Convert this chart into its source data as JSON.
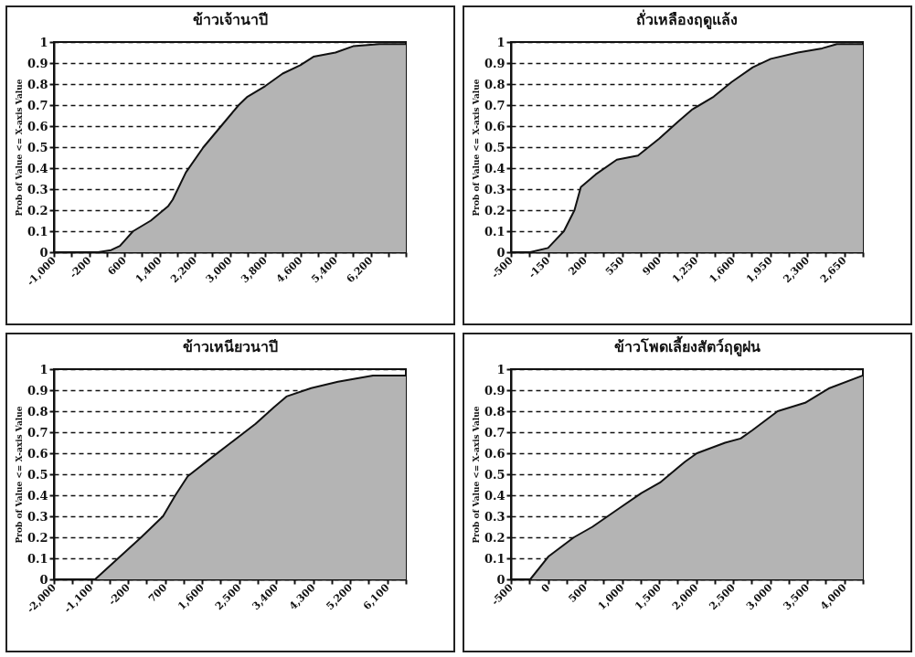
{
  "chart_data": [
    {
      "type": "area",
      "title": "ข้าวเจ้านาปี",
      "ylabel": "Prob of Value <= X-axis Value",
      "grid": "y",
      "xlim": [
        -1000,
        7000
      ],
      "ylim": [
        0,
        1
      ],
      "yticks": [
        0,
        0.1,
        0.2,
        0.3,
        0.4,
        0.5,
        0.6,
        0.7,
        0.8,
        0.9,
        1
      ],
      "xticks": [
        {
          "value": -1000,
          "label": "-1,000"
        },
        {
          "value": -600,
          "label": null
        },
        {
          "value": -200,
          "label": "-200"
        },
        {
          "value": 200,
          "label": null
        },
        {
          "value": 600,
          "label": "600"
        },
        {
          "value": 1000,
          "label": null
        },
        {
          "value": 1400,
          "label": "1,400"
        },
        {
          "value": 1800,
          "label": null
        },
        {
          "value": 2200,
          "label": "2,200"
        },
        {
          "value": 2600,
          "label": null
        },
        {
          "value": 3000,
          "label": "3,000"
        },
        {
          "value": 3400,
          "label": null
        },
        {
          "value": 3800,
          "label": "3,800"
        },
        {
          "value": 4200,
          "label": null
        },
        {
          "value": 4600,
          "label": "4,600"
        },
        {
          "value": 5000,
          "label": null
        },
        {
          "value": 5400,
          "label": "5,400"
        },
        {
          "value": 5800,
          "label": null
        },
        {
          "value": 6200,
          "label": "6,200"
        },
        {
          "value": 6600,
          "label": null
        },
        {
          "value": 7000,
          "label": null
        }
      ],
      "series": [
        {
          "color": "#b4b4b4",
          "x": [
            -1000,
            0,
            300,
            500,
            800,
            1200,
            1600,
            1700,
            2000,
            2400,
            2800,
            3200,
            3400,
            3800,
            4200,
            4600,
            4900,
            5400,
            5800,
            6400,
            7000
          ],
          "values": [
            0,
            0,
            0.01,
            0.03,
            0.1,
            0.15,
            0.22,
            0.25,
            0.38,
            0.5,
            0.6,
            0.7,
            0.74,
            0.79,
            0.85,
            0.89,
            0.93,
            0.95,
            0.98,
            0.99,
            0.99
          ]
        }
      ]
    },
    {
      "type": "area",
      "title": "ถั่วเหลืองฤดูแล้ง",
      "ylabel": "Prob of Value <= X-axis Value",
      "grid": "y",
      "xlim": [
        -500,
        2825
      ],
      "ylim": [
        0,
        1
      ],
      "yticks": [
        0,
        0.1,
        0.2,
        0.3,
        0.4,
        0.5,
        0.6,
        0.7,
        0.8,
        0.9,
        1
      ],
      "xticks": [
        {
          "value": -500,
          "label": "-500"
        },
        {
          "value": -325,
          "label": null
        },
        {
          "value": -150,
          "label": "-150"
        },
        {
          "value": 25,
          "label": null
        },
        {
          "value": 200,
          "label": "200"
        },
        {
          "value": 375,
          "label": null
        },
        {
          "value": 550,
          "label": "550"
        },
        {
          "value": 725,
          "label": null
        },
        {
          "value": 900,
          "label": "900"
        },
        {
          "value": 1075,
          "label": null
        },
        {
          "value": 1250,
          "label": "1,250"
        },
        {
          "value": 1425,
          "label": null
        },
        {
          "value": 1600,
          "label": "1,600"
        },
        {
          "value": 1775,
          "label": null
        },
        {
          "value": 1950,
          "label": "1,950"
        },
        {
          "value": 2125,
          "label": null
        },
        {
          "value": 2300,
          "label": "2,300"
        },
        {
          "value": 2475,
          "label": null
        },
        {
          "value": 2650,
          "label": "2,650"
        },
        {
          "value": 2825,
          "label": null
        }
      ],
      "series": [
        {
          "color": "#b4b4b4",
          "x": [
            -500,
            -320,
            -150,
            0,
            100,
            160,
            300,
            500,
            700,
            900,
            1075,
            1215,
            1415,
            1585,
            1785,
            1955,
            2210,
            2440,
            2580,
            2825
          ],
          "values": [
            0,
            0,
            0.02,
            0.1,
            0.2,
            0.31,
            0.37,
            0.44,
            0.46,
            0.54,
            0.62,
            0.68,
            0.74,
            0.81,
            0.88,
            0.92,
            0.95,
            0.97,
            0.99,
            0.99
          ]
        }
      ]
    },
    {
      "type": "area",
      "title": "ข้าวเหนียวนาปี",
      "ylabel": "Prob of Value <= X-axis Value",
      "grid": "y",
      "xlim": [
        -2000,
        6550
      ],
      "ylim": [
        0,
        1
      ],
      "yticks": [
        0,
        0.1,
        0.2,
        0.3,
        0.4,
        0.5,
        0.6,
        0.7,
        0.8,
        0.9,
        1
      ],
      "xticks": [
        {
          "value": -2000,
          "label": "-2,000"
        },
        {
          "value": -1550,
          "label": null
        },
        {
          "value": -1100,
          "label": "-1,100"
        },
        {
          "value": -650,
          "label": null
        },
        {
          "value": -200,
          "label": "-200"
        },
        {
          "value": 250,
          "label": null
        },
        {
          "value": 700,
          "label": "700"
        },
        {
          "value": 1150,
          "label": null
        },
        {
          "value": 1600,
          "label": "1,600"
        },
        {
          "value": 2050,
          "label": null
        },
        {
          "value": 2500,
          "label": "2,500"
        },
        {
          "value": 2950,
          "label": null
        },
        {
          "value": 3400,
          "label": "3,400"
        },
        {
          "value": 3850,
          "label": null
        },
        {
          "value": 4300,
          "label": "4,300"
        },
        {
          "value": 4750,
          "label": null
        },
        {
          "value": 5200,
          "label": "5,200"
        },
        {
          "value": 5650,
          "label": null
        },
        {
          "value": 6100,
          "label": "6,100"
        },
        {
          "value": 6550,
          "label": null
        }
      ],
      "series": [
        {
          "color": "#b4b4b4",
          "x": [
            -2000,
            -1000,
            -550,
            120,
            650,
            950,
            1250,
            1770,
            2300,
            2900,
            3350,
            3650,
            4250,
            4900,
            5750,
            6550
          ],
          "values": [
            0,
            0,
            0.08,
            0.2,
            0.3,
            0.4,
            0.49,
            0.57,
            0.65,
            0.74,
            0.82,
            0.87,
            0.91,
            0.94,
            0.97,
            0.97
          ]
        }
      ]
    },
    {
      "type": "area",
      "title": "ข้าวโพดเลี้ยงสัตว์ฤดูฝน",
      "ylabel": "Prob of Value <= X-axis Value",
      "grid": "y",
      "xlim": [
        -500,
        4250
      ],
      "ylim": [
        0,
        1
      ],
      "yticks": [
        0,
        0.1,
        0.2,
        0.3,
        0.4,
        0.5,
        0.6,
        0.7,
        0.8,
        0.9,
        1
      ],
      "xticks": [
        {
          "value": -500,
          "label": "-500"
        },
        {
          "value": -250,
          "label": null
        },
        {
          "value": 0,
          "label": "0"
        },
        {
          "value": 250,
          "label": null
        },
        {
          "value": 500,
          "label": "500"
        },
        {
          "value": 750,
          "label": null
        },
        {
          "value": 1000,
          "label": "1,000"
        },
        {
          "value": 1250,
          "label": null
        },
        {
          "value": 1500,
          "label": "1,500"
        },
        {
          "value": 1750,
          "label": null
        },
        {
          "value": 2000,
          "label": "2,000"
        },
        {
          "value": 2250,
          "label": null
        },
        {
          "value": 2500,
          "label": "2,500"
        },
        {
          "value": 2750,
          "label": null
        },
        {
          "value": 3000,
          "label": "3,000"
        },
        {
          "value": 3250,
          "label": null
        },
        {
          "value": 3500,
          "label": "3,500"
        },
        {
          "value": 3750,
          "label": null
        },
        {
          "value": 4000,
          "label": "4,000"
        },
        {
          "value": 4250,
          "label": null
        }
      ],
      "series": [
        {
          "color": "#b4b4b4",
          "x": [
            -500,
            -240,
            10,
            350,
            600,
            970,
            1260,
            1510,
            1850,
            2010,
            2390,
            2600,
            2760,
            3100,
            3470,
            3800,
            4250
          ],
          "values": [
            0,
            0,
            0.11,
            0.2,
            0.25,
            0.34,
            0.41,
            0.46,
            0.56,
            0.6,
            0.65,
            0.67,
            0.71,
            0.8,
            0.84,
            0.91,
            0.97
          ]
        }
      ]
    }
  ]
}
